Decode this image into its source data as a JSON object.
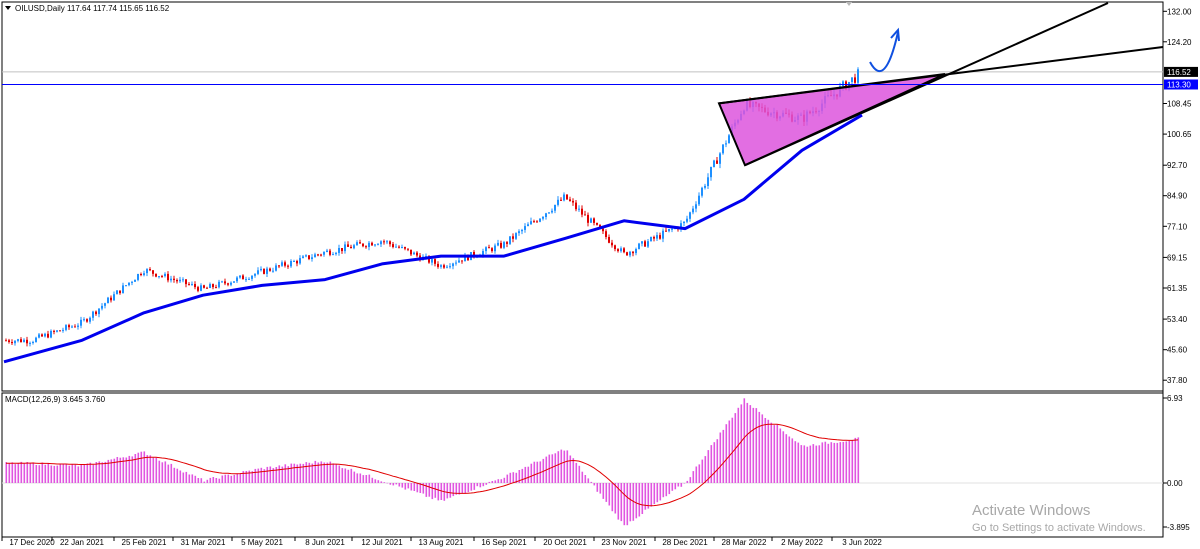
{
  "header": {
    "symbol_line": "OILUSD,Daily  117.64 117.74 115.65 116.52",
    "dropdown_icon": "triangle-down-icon"
  },
  "macd": {
    "label": "MACD(12,26,9) 3.645 3.760",
    "ticks": [
      "6.93",
      "0.00",
      "-3.895"
    ],
    "ylim": [
      -3.895,
      6.93
    ]
  },
  "price_axis": {
    "ticks": [
      "132.00",
      "124.20",
      "108.45",
      "100.65",
      "92.70",
      "84.90",
      "77.10",
      "69.15",
      "61.35",
      "53.40",
      "45.60",
      "37.80"
    ],
    "current_price": "116.52",
    "marked_level": "113.30"
  },
  "time_axis": {
    "labels": [
      "17 Dec 2020",
      "22 Jan 2021",
      "25 Feb 2021",
      "31 Mar 2021",
      "5 May 2021",
      "8 Jun 2021",
      "12 Jul 2021",
      "13 Aug 2021",
      "16 Sep 2021",
      "20 Oct 2021",
      "23 Nov 2021",
      "28 Dec 2021",
      "28 Mar 2022",
      "2 May 2022",
      "3 Jun 2022"
    ]
  },
  "watermark": {
    "title": "Activate Windows",
    "subtitle": "Go to Settings to activate Windows."
  },
  "colors": {
    "up_candle": "#1e90ff",
    "down_candle": "#e00000",
    "moving_average": "#0000ee",
    "macd_histogram": "#e055e0",
    "macd_signal": "#e00000",
    "triangle_fill": "#dd55dd",
    "level_line": "#0000ff",
    "trend_lines": "#000000",
    "arrow": "#1050e0"
  },
  "chart_data": [
    {
      "type": "candlestick",
      "title": "OILUSD,Daily",
      "ylim": [
        37.8,
        132.0
      ],
      "last": {
        "open": 117.64,
        "high": 117.74,
        "low": 115.65,
        "close": 116.52
      },
      "x": [
        "17 Dec 2020",
        "22 Jan 2021",
        "25 Feb 2021",
        "31 Mar 2021",
        "5 May 2021",
        "8 Jun 2021",
        "12 Jul 2021",
        "13 Aug 2021",
        "16 Sep 2021",
        "20 Oct 2021",
        "23 Nov 2021",
        "28 Dec 2021",
        "28 Mar 2022",
        "2 May 2022",
        "3 Jun 2022"
      ],
      "close_path": [
        [
          "17 Dec 2020",
          48.0
        ],
        [
          "22 Jan 2021",
          52.5
        ],
        [
          "25 Feb 2021",
          66.0
        ],
        [
          "31 Mar 2021",
          61.0
        ],
        [
          "5 May 2021",
          65.5
        ],
        [
          "8 Jun 2021",
          70.5
        ],
        [
          "12 Jul 2021",
          73.5
        ],
        [
          "13 Aug 2021",
          67.0
        ],
        [
          "16 Sep 2021",
          72.5
        ],
        [
          "20 Oct 2021",
          84.5
        ],
        [
          "23 Nov 2021",
          70.0
        ],
        [
          "28 Dec 2021",
          78.0
        ],
        [
          "28 Mar 2022",
          108.0
        ],
        [
          "2 May 2022",
          104.5
        ],
        [
          "3 Jun 2022",
          116.52
        ]
      ],
      "series": [
        {
          "moving_average": [
            [
              "17 Dec 2020",
              42.5
            ],
            [
              "22 Jan 2021",
              48.0
            ],
            [
              "25 Feb 2021",
              55.0
            ],
            [
              "31 Mar 2021",
              59.5
            ],
            [
              "5 May 2021",
              62.0
            ],
            [
              "8 Jun 2021",
              63.5
            ],
            [
              "12 Jul 2021",
              67.5
            ],
            [
              "13 Aug 2021",
              69.5
            ],
            [
              "16 Sep 2021",
              69.5
            ],
            [
              "20 Oct 2021",
              74.0
            ],
            [
              "23 Nov 2021",
              78.5
            ],
            [
              "28 Dec 2021",
              76.5
            ],
            [
              "28 Mar 2022",
              84.0
            ],
            [
              "2 May 2022",
              96.5
            ],
            [
              "3 Jun 2022",
              105.5
            ]
          ]
        }
      ],
      "annotations": {
        "horizontal_level": 113.3,
        "triangle": [
          [
            "28 Mar 2022",
            108.5
          ],
          [
            "28 Mar 2022",
            92.7
          ],
          [
            "3 Jun 2022",
            115.5
          ]
        ]
      }
    },
    {
      "type": "bar",
      "title": "MACD(12,26,9) 3.645 3.760",
      "ylim": [
        -3.895,
        6.93
      ],
      "x": [
        "17 Dec 2020",
        "22 Jan 2021",
        "25 Feb 2021",
        "31 Mar 2021",
        "5 May 2021",
        "8 Jun 2021",
        "12 Jul 2021",
        "13 Aug 2021",
        "16 Sep 2021",
        "20 Oct 2021",
        "23 Nov 2021",
        "28 Dec 2021",
        "28 Mar 2022",
        "2 May 2022",
        "3 Jun 2022"
      ],
      "macd_path": [
        [
          "17 Dec 2020",
          1.6
        ],
        [
          "22 Jan 2021",
          1.4
        ],
        [
          "25 Feb 2021",
          2.5
        ],
        [
          "31 Mar 2021",
          0.2
        ],
        [
          "5 May 2021",
          1.2
        ],
        [
          "8 Jun 2021",
          1.8
        ],
        [
          "12 Jul 2021",
          0.2
        ],
        [
          "13 Aug 2021",
          -1.5
        ],
        [
          "16 Sep 2021",
          0.5
        ],
        [
          "20 Oct 2021",
          2.8
        ],
        [
          "23 Nov 2021",
          -3.5
        ],
        [
          "28 Dec 2021",
          0.0
        ],
        [
          "28 Mar 2022",
          6.8
        ],
        [
          "2 May 2022",
          3.0
        ],
        [
          "3 Jun 2022",
          3.645
        ]
      ],
      "signal_last": 3.76
    }
  ]
}
